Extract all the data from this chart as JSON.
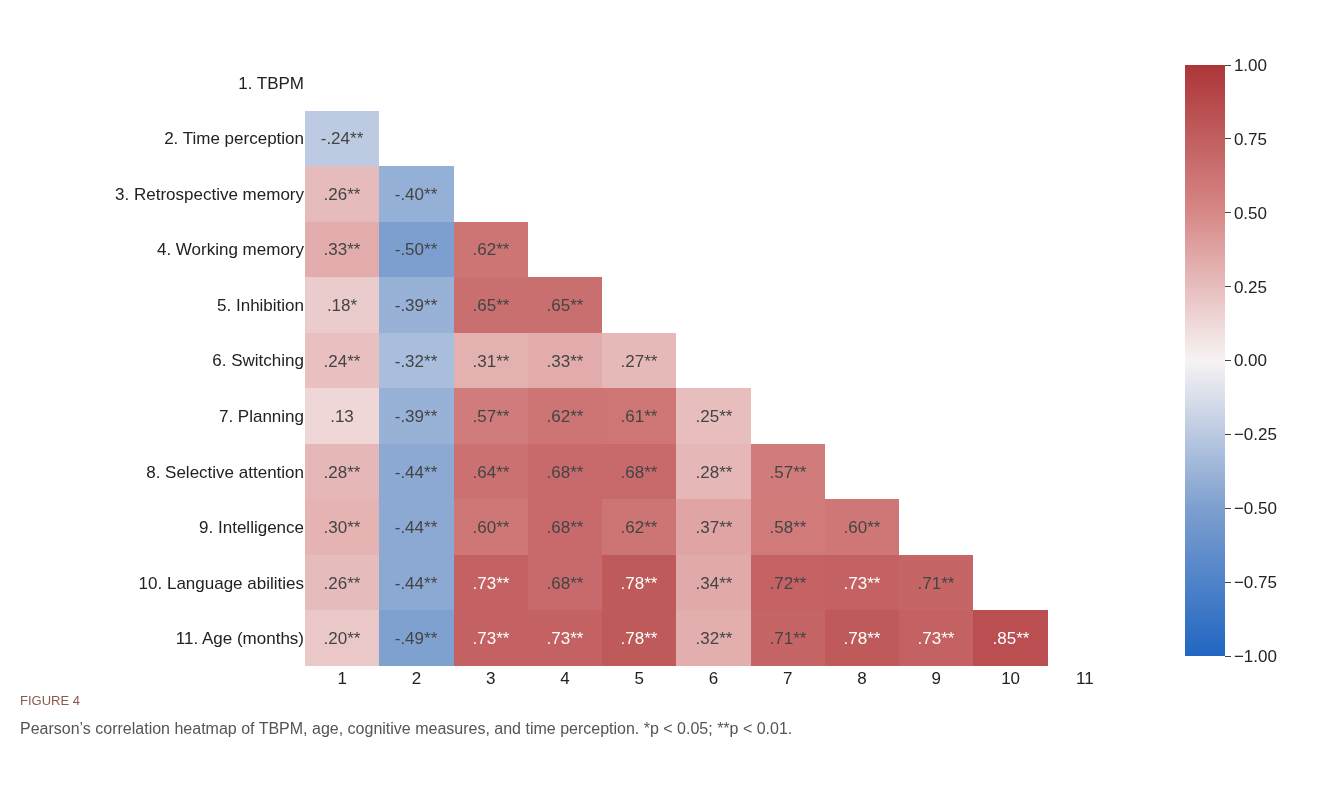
{
  "chart_data": {
    "type": "heatmap",
    "categories": [
      "1",
      "2",
      "3",
      "4",
      "5",
      "6",
      "7",
      "8",
      "9",
      "10",
      "11"
    ],
    "y_categories": [
      "1. TBPM",
      "2. Time perception",
      "3. Retrospective memory",
      "4. Working memory",
      "5. Inhibition",
      "6. Switching",
      "7. Planning",
      "8. Selective attention",
      "9. Intelligence",
      "10. Language abilities",
      "11. Age (months)"
    ],
    "cells": [
      [
        null,
        null,
        null,
        null,
        null,
        null,
        null,
        null,
        null,
        null,
        null
      ],
      [
        -0.24,
        null,
        null,
        null,
        null,
        null,
        null,
        null,
        null,
        null,
        null
      ],
      [
        0.26,
        -0.4,
        null,
        null,
        null,
        null,
        null,
        null,
        null,
        null,
        null
      ],
      [
        0.33,
        -0.5,
        0.62,
        null,
        null,
        null,
        null,
        null,
        null,
        null,
        null
      ],
      [
        0.18,
        -0.39,
        0.65,
        0.65,
        null,
        null,
        null,
        null,
        null,
        null,
        null
      ],
      [
        0.24,
        -0.32,
        0.31,
        0.33,
        0.27,
        null,
        null,
        null,
        null,
        null,
        null
      ],
      [
        0.13,
        -0.39,
        0.57,
        0.62,
        0.61,
        0.25,
        null,
        null,
        null,
        null,
        null
      ],
      [
        0.28,
        -0.44,
        0.64,
        0.68,
        0.68,
        0.28,
        0.57,
        null,
        null,
        null,
        null
      ],
      [
        0.3,
        -0.44,
        0.6,
        0.68,
        0.62,
        0.37,
        0.58,
        0.6,
        null,
        null,
        null
      ],
      [
        0.26,
        -0.44,
        0.73,
        0.68,
        0.78,
        0.34,
        0.72,
        0.73,
        0.71,
        null,
        null
      ],
      [
        0.2,
        -0.49,
        0.73,
        0.73,
        0.78,
        0.32,
        0.71,
        0.78,
        0.73,
        0.85,
        null
      ]
    ],
    "cell_labels": [
      [
        null,
        null,
        null,
        null,
        null,
        null,
        null,
        null,
        null,
        null,
        null
      ],
      [
        "-.24**",
        null,
        null,
        null,
        null,
        null,
        null,
        null,
        null,
        null,
        null
      ],
      [
        ".26**",
        "-.40**",
        null,
        null,
        null,
        null,
        null,
        null,
        null,
        null,
        null
      ],
      [
        ".33**",
        "-.50**",
        ".62**",
        null,
        null,
        null,
        null,
        null,
        null,
        null,
        null
      ],
      [
        ".18*",
        "-.39**",
        ".65**",
        ".65**",
        null,
        null,
        null,
        null,
        null,
        null,
        null
      ],
      [
        ".24**",
        "-.32**",
        ".31**",
        ".33**",
        ".27**",
        null,
        null,
        null,
        null,
        null,
        null
      ],
      [
        ".13",
        "-.39**",
        ".57**",
        ".62**",
        ".61**",
        ".25**",
        null,
        null,
        null,
        null,
        null
      ],
      [
        ".28**",
        "-.44**",
        ".64**",
        ".68**",
        ".68**",
        ".28**",
        ".57**",
        null,
        null,
        null,
        null
      ],
      [
        ".30**",
        "-.44**",
        ".60**",
        ".68**",
        ".62**",
        ".37**",
        ".58**",
        ".60**",
        null,
        null,
        null
      ],
      [
        ".26**",
        "-.44**",
        ".73**",
        ".68**",
        ".78**",
        ".34**",
        ".72**",
        ".73**",
        ".71**",
        null,
        null
      ],
      [
        ".20**",
        "-.49**",
        ".73**",
        ".73**",
        ".78**",
        ".32**",
        ".71**",
        ".78**",
        ".73**",
        ".85**",
        null
      ]
    ],
    "clim": [
      -1,
      1
    ],
    "cticks": [
      {
        "value": 1,
        "label": "1.00"
      },
      {
        "value": 0.75,
        "label": "0.75"
      },
      {
        "value": 0.5,
        "label": "0.50"
      },
      {
        "value": 0.25,
        "label": "0.25"
      },
      {
        "value": 0,
        "label": "0.00"
      },
      {
        "value": -0.25,
        "label": "−0.25"
      },
      {
        "value": -0.5,
        "label": "−0.50"
      },
      {
        "value": -0.75,
        "label": "−0.75"
      },
      {
        "value": -1,
        "label": "−1.00"
      }
    ],
    "annotations": [
      "FIGURE 4",
      "Pearson’s correlation heatmap of TBPM, age, cognitive measures, and time perception. *p < 0.05; **p < 0.01."
    ]
  }
}
